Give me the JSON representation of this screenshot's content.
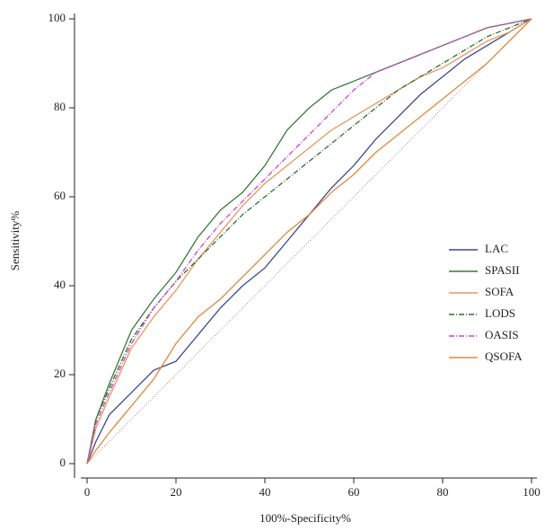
{
  "chart_data": {
    "type": "line",
    "x_label": "100%-Specificity%",
    "y_label": "Sensitivity%",
    "x": [
      0,
      2,
      5,
      10,
      15,
      20,
      25,
      30,
      35,
      40,
      45,
      50,
      55,
      60,
      65,
      70,
      75,
      80,
      85,
      90,
      95,
      100
    ],
    "series": [
      {
        "name": "LAC",
        "color": "#3b4a8c",
        "style": "solid",
        "values": [
          0,
          5,
          11,
          16,
          21,
          23,
          29,
          35,
          40,
          44,
          50,
          56,
          62,
          67,
          73,
          78,
          83,
          87,
          91,
          94,
          97,
          100
        ]
      },
      {
        "name": "SPASII",
        "color": "#3a7a3a",
        "style": "solid",
        "values": [
          0,
          10,
          18,
          30,
          37,
          43,
          51,
          57,
          61,
          67,
          75,
          80,
          84,
          86,
          88,
          90,
          92,
          94,
          96,
          98,
          99,
          100
        ]
      },
      {
        "name": "SOFA",
        "color": "#e9975c",
        "style": "solid",
        "values": [
          0,
          8,
          15,
          26,
          33,
          39,
          46,
          52,
          58,
          63,
          67,
          71,
          75,
          78,
          81,
          84,
          87,
          89,
          92,
          95,
          97,
          100
        ]
      },
      {
        "name": "LODS",
        "color": "#2e6e2e",
        "style": "dashdot",
        "values": [
          0,
          10,
          17,
          28,
          35,
          41,
          46,
          51,
          56,
          60,
          64,
          68,
          72,
          76,
          80,
          84,
          87,
          90,
          93,
          96,
          98,
          100
        ]
      },
      {
        "name": "OASIS",
        "color": "#cc44cc",
        "style": "dashdot",
        "values": [
          0,
          9,
          16,
          27,
          35,
          41,
          48,
          54,
          59,
          64,
          69,
          74,
          79,
          84,
          88,
          90,
          92,
          94,
          96,
          98,
          99,
          100
        ]
      },
      {
        "name": "QSOFA",
        "color": "#e0883a",
        "style": "solid",
        "values": [
          0,
          3,
          7,
          13,
          19,
          27,
          33,
          37,
          42,
          47,
          52,
          56,
          61,
          65,
          70,
          74,
          78,
          82,
          86,
          90,
          95,
          100
        ]
      }
    ],
    "xlim": [
      0,
      100
    ],
    "ylim": [
      0,
      100
    ],
    "xticks": [
      0,
      20,
      40,
      60,
      80,
      100
    ],
    "yticks": [
      0,
      20,
      40,
      60,
      80,
      100
    ],
    "legend": "right",
    "diagonal": true
  }
}
